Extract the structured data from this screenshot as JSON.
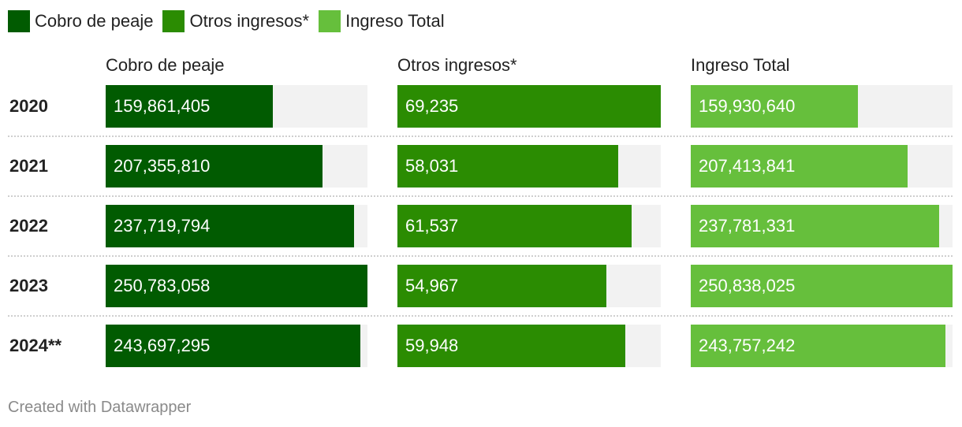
{
  "chart_data": {
    "type": "bar",
    "legend": [
      {
        "label": "Cobro de peaje",
        "color": "#015b01"
      },
      {
        "label": "Otros ingresos*",
        "color": "#2b8c02"
      },
      {
        "label": "Ingreso Total",
        "color": "#66bf3c"
      }
    ],
    "categories": [
      "2020",
      "2021",
      "2022",
      "2023",
      "2024**"
    ],
    "series": [
      {
        "name": "Cobro de peaje",
        "color": "#015b01",
        "values": [
          159861405,
          207355810,
          237719794,
          250783058,
          243697295
        ],
        "labels": [
          "159,861,405",
          "207,355,810",
          "237,719,794",
          "250,783,058",
          "243,697,295"
        ]
      },
      {
        "name": "Otros ingresos*",
        "color": "#2b8c02",
        "values": [
          69235,
          58031,
          61537,
          54967,
          59948
        ],
        "labels": [
          "69,235",
          "58,031",
          "61,537",
          "54,967",
          "59,948"
        ]
      },
      {
        "name": "Ingreso Total",
        "color": "#66bf3c",
        "values": [
          159930640,
          207413841,
          237781331,
          250838025,
          243757242
        ],
        "labels": [
          "159,930,640",
          "207,413,841",
          "237,781,331",
          "250,838,025",
          "243,757,242"
        ]
      }
    ]
  },
  "credit": "Created with Datawrapper"
}
